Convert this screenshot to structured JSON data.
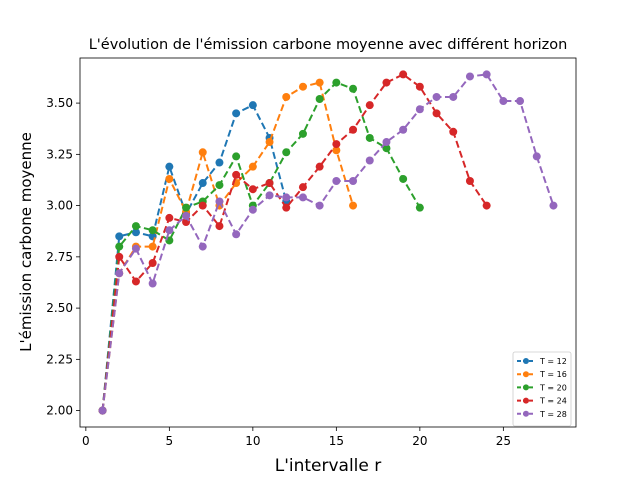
{
  "chart_data": {
    "type": "line",
    "title": "L'évolution de l'émission carbone moyenne avec différent horizon",
    "xlabel": "L'intervalle r",
    "ylabel": "L'émission carbone moyenne",
    "xlim": [
      -0.35,
      29.35
    ],
    "ylim": [
      1.92,
      3.72
    ],
    "xticks": [
      0,
      5,
      10,
      15,
      20,
      25
    ],
    "yticks": [
      2.0,
      2.25,
      2.5,
      2.75,
      3.0,
      3.25,
      3.5
    ],
    "ytick_labels": [
      "2.00",
      "2.25",
      "2.50",
      "2.75",
      "3.00",
      "3.25",
      "3.50"
    ],
    "grid": false,
    "legend_position": "lower-right",
    "series": [
      {
        "name": "T = 12",
        "color": "#1f77b4",
        "x": [
          1,
          2,
          3,
          4,
          5,
          6,
          7,
          8,
          9,
          10,
          11,
          12
        ],
        "y": [
          2.0,
          2.85,
          2.87,
          2.85,
          3.19,
          2.96,
          3.11,
          3.21,
          3.45,
          3.49,
          3.33,
          3.02
        ]
      },
      {
        "name": "T = 16",
        "color": "#ff7f0e",
        "x": [
          1,
          2,
          3,
          4,
          5,
          6,
          7,
          8,
          9,
          10,
          11,
          12,
          13,
          14,
          15,
          16
        ],
        "y": [
          2.0,
          2.67,
          2.8,
          2.8,
          3.13,
          2.97,
          3.26,
          3.0,
          3.11,
          3.19,
          3.31,
          3.53,
          3.58,
          3.6,
          3.27,
          3.0
        ]
      },
      {
        "name": "T = 20",
        "color": "#2ca02c",
        "x": [
          1,
          2,
          3,
          4,
          5,
          6,
          7,
          8,
          9,
          10,
          11,
          12,
          13,
          14,
          15,
          16,
          17,
          18,
          19,
          20
        ],
        "y": [
          2.0,
          2.8,
          2.9,
          2.88,
          2.83,
          2.99,
          3.02,
          3.1,
          3.24,
          3.0,
          3.11,
          3.26,
          3.35,
          3.52,
          3.6,
          3.57,
          3.33,
          3.28,
          3.13,
          2.99
        ]
      },
      {
        "name": "T = 24",
        "color": "#d62728",
        "x": [
          1,
          2,
          3,
          4,
          5,
          6,
          7,
          8,
          9,
          10,
          11,
          12,
          13,
          14,
          15,
          16,
          17,
          18,
          19,
          20,
          21,
          22,
          23,
          24
        ],
        "y": [
          2.0,
          2.75,
          2.63,
          2.72,
          2.94,
          2.92,
          3.0,
          2.9,
          3.15,
          3.08,
          3.11,
          2.99,
          3.09,
          3.19,
          3.3,
          3.37,
          3.49,
          3.6,
          3.64,
          3.58,
          3.45,
          3.36,
          3.12,
          3.0
        ]
      },
      {
        "name": "T = 28",
        "color": "#9467bd",
        "x": [
          1,
          2,
          3,
          4,
          5,
          6,
          7,
          8,
          9,
          10,
          11,
          12,
          13,
          14,
          15,
          16,
          17,
          18,
          19,
          20,
          21,
          22,
          23,
          24,
          25,
          26,
          27,
          28
        ],
        "y": [
          2.0,
          2.67,
          2.79,
          2.62,
          2.88,
          2.95,
          2.8,
          3.02,
          2.86,
          2.98,
          3.05,
          3.04,
          3.04,
          3.0,
          3.12,
          3.12,
          3.22,
          3.31,
          3.37,
          3.47,
          3.53,
          3.53,
          3.63,
          3.64,
          3.51,
          3.51,
          3.24,
          3.0
        ]
      }
    ]
  }
}
